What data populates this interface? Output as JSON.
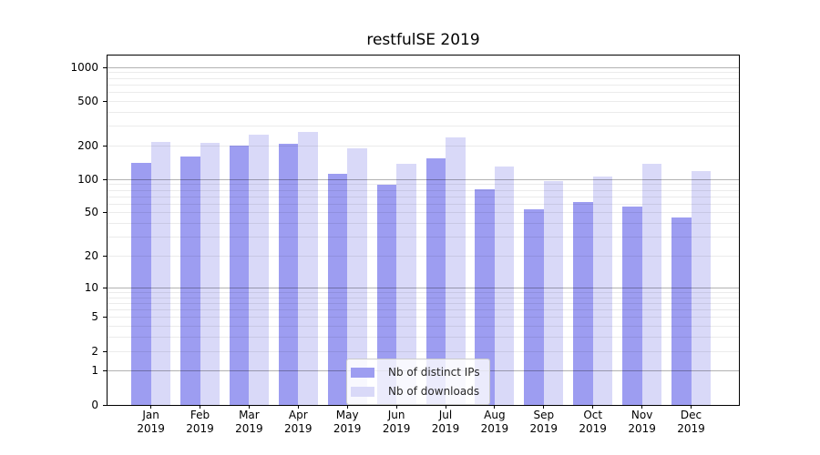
{
  "title": "restfulSE 2019",
  "chart_data": {
    "type": "bar",
    "title": "restfulSE 2019",
    "categories": [
      "Jan",
      "Feb",
      "Mar",
      "Apr",
      "May",
      "Jun",
      "Jul",
      "Aug",
      "Sep",
      "Oct",
      "Nov",
      "Dec"
    ],
    "year_label": "2019",
    "series": [
      {
        "name": "Nb of distinct IPs",
        "color": "#9d9df1",
        "values": [
          141,
          160,
          201,
          210,
          112,
          90,
          156,
          81,
          54,
          63,
          57,
          45
        ]
      },
      {
        "name": "Nb of downloads",
        "color": "#d9d9f8",
        "values": [
          217,
          213,
          251,
          266,
          191,
          138,
          238,
          131,
          96,
          107,
          138,
          118
        ]
      }
    ],
    "y_axis": {
      "scale": "log10(1+v)",
      "ticks": [
        0,
        1,
        2,
        5,
        10,
        20,
        50,
        100,
        200,
        500,
        1000
      ],
      "major_gridlines": [
        1,
        10,
        100,
        1000
      ],
      "minor_gridlines": [
        2,
        3,
        4,
        5,
        6,
        7,
        8,
        9,
        20,
        30,
        40,
        50,
        60,
        70,
        80,
        90,
        200,
        300,
        400,
        500,
        600,
        700,
        800,
        900
      ],
      "ylim": [
        0,
        1280
      ]
    },
    "grid": true,
    "legend": {
      "position": "lower center"
    }
  }
}
